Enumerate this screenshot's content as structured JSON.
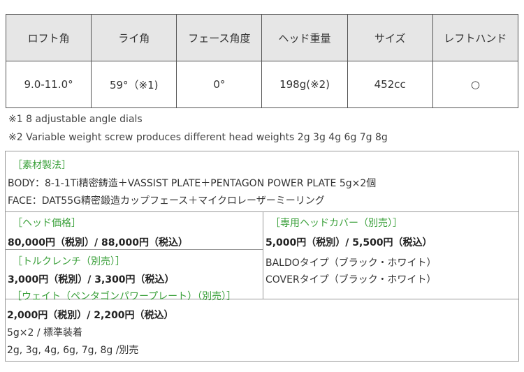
{
  "spec_table": {
    "headers": [
      "ロフト角",
      "ライ角",
      "フェース角度",
      "ヘッド重量",
      "サイズ",
      "レフトハンド"
    ],
    "values": [
      "9.0-11.0°",
      "59°（※1)",
      "0°",
      "198g(※2)",
      "452cc",
      "○"
    ]
  },
  "notes": [
    "※1  8 adjustable angle dials",
    "※2 Variable weight screw produces different head weights 2g 3g 4g 6g 7g 8g"
  ],
  "material": {
    "title": "［素材製法］",
    "body": "BODY：8-1-1Ti精密鋳造＋VASSIST PLATE＋PENTAGON POWER PLATE 5g×2個",
    "face": "FACE：DAT55G精密鍛造カップフェース＋マイクロレーザーミーリング"
  },
  "head_price": {
    "title": "［ヘッド価格］",
    "price": "80,000円（税別）/ 88,000円（税込）"
  },
  "wrench": {
    "title": "［トルクレンチ（別売）］",
    "price": "3,000円（税別）/ 3,300円（税込）"
  },
  "cover": {
    "title": "［専用ヘッドカバー（別売）］",
    "price": "5,000円（税別）/ 5,500円（税込）",
    "types": [
      "BALDOタイプ（ブラック・ホワイト）",
      "COVERタイプ（ブラック・ホワイト）"
    ]
  },
  "weight": {
    "title": "［ウェイト（ペンタゴンパワープレート）（別売）］",
    "price": "2,000円（税別）/ 2,200円（税込）",
    "standard": "5g×2 / 標準装着",
    "options": "2g, 3g, 4g, 6g, 7g, 8g /別売"
  },
  "colors": {
    "accent": "#3aa03a",
    "header_bg": "#e6e6e6"
  }
}
